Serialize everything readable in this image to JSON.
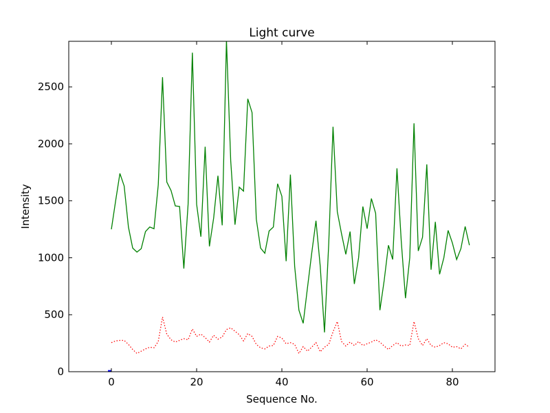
{
  "chart_data": {
    "type": "line",
    "title": "Light curve",
    "xlabel": "Sequence No.",
    "ylabel": "Intensity",
    "xlim": [
      -10,
      90
    ],
    "ylim": [
      0,
      2900
    ],
    "xticks": [
      0,
      20,
      40,
      60,
      80
    ],
    "yticks": [
      0,
      500,
      1000,
      1500,
      2000,
      2500
    ],
    "grid": false,
    "series": [
      {
        "style": "solid",
        "color": "#008000",
        "x": [
          0,
          1,
          2,
          3,
          4,
          5,
          6,
          7,
          8,
          9,
          10,
          11,
          12,
          13,
          14,
          15,
          16,
          17,
          18,
          19,
          20,
          21,
          22,
          23,
          24,
          25,
          26,
          27,
          28,
          29,
          30,
          31,
          32,
          33,
          34,
          35,
          36,
          37,
          38,
          39,
          40,
          41,
          42,
          43,
          44,
          45,
          46,
          47,
          48,
          49,
          50,
          51,
          52,
          53,
          54,
          55,
          56,
          57,
          58,
          59,
          60,
          61,
          62,
          63,
          64,
          65,
          66,
          67,
          68,
          69,
          70,
          71,
          72,
          73,
          74,
          75,
          76,
          77,
          78,
          79,
          80,
          81,
          82,
          83,
          84
        ],
        "values": [
          1250,
          1500,
          1740,
          1630,
          1270,
          1085,
          1050,
          1080,
          1230,
          1270,
          1255,
          1640,
          2585,
          1665,
          1590,
          1455,
          1450,
          905,
          1470,
          2800,
          1470,
          1185,
          1975,
          1100,
          1350,
          1720,
          1285,
          2910,
          1850,
          1290,
          1620,
          1585,
          2395,
          2275,
          1340,
          1085,
          1040,
          1235,
          1270,
          1650,
          1540,
          970,
          1730,
          925,
          540,
          425,
          735,
          1040,
          1325,
          925,
          345,
          1130,
          2150,
          1405,
          1210,
          1030,
          1230,
          770,
          1000,
          1450,
          1255,
          1520,
          1390,
          540,
          800,
          1110,
          985,
          1785,
          1150,
          645,
          1000,
          2180,
          1060,
          1180,
          1820,
          895,
          1315,
          855,
          1000,
          1240,
          1130,
          985,
          1080,
          1275,
          1110
        ]
      },
      {
        "style": "dotted",
        "color": "#ff0000",
        "x": [
          0,
          1,
          2,
          3,
          4,
          5,
          6,
          7,
          8,
          9,
          10,
          11,
          12,
          13,
          14,
          15,
          16,
          17,
          18,
          19,
          20,
          21,
          22,
          23,
          24,
          25,
          26,
          27,
          28,
          29,
          30,
          31,
          32,
          33,
          34,
          35,
          36,
          37,
          38,
          39,
          40,
          41,
          42,
          43,
          44,
          45,
          46,
          47,
          48,
          49,
          50,
          51,
          52,
          53,
          54,
          55,
          56,
          57,
          58,
          59,
          60,
          61,
          62,
          63,
          64,
          65,
          66,
          67,
          68,
          69,
          70,
          71,
          72,
          73,
          74,
          75,
          76,
          77,
          78,
          79,
          80,
          81,
          82,
          83,
          84
        ],
        "values": [
          255,
          270,
          275,
          275,
          240,
          195,
          160,
          180,
          200,
          215,
          210,
          265,
          480,
          330,
          280,
          260,
          275,
          290,
          280,
          375,
          310,
          330,
          300,
          260,
          320,
          285,
          305,
          370,
          385,
          355,
          325,
          270,
          335,
          310,
          240,
          210,
          200,
          225,
          230,
          310,
          295,
          245,
          255,
          240,
          160,
          220,
          180,
          215,
          255,
          175,
          215,
          240,
          350,
          440,
          265,
          225,
          260,
          230,
          265,
          230,
          245,
          260,
          280,
          260,
          225,
          195,
          230,
          255,
          225,
          235,
          230,
          440,
          290,
          230,
          290,
          230,
          215,
          230,
          255,
          245,
          215,
          220,
          200,
          240,
          215
        ]
      },
      {
        "style": "solid",
        "color": "#0000ff",
        "x": [
          -0.8,
          0
        ],
        "values": [
          5,
          5
        ]
      }
    ]
  }
}
